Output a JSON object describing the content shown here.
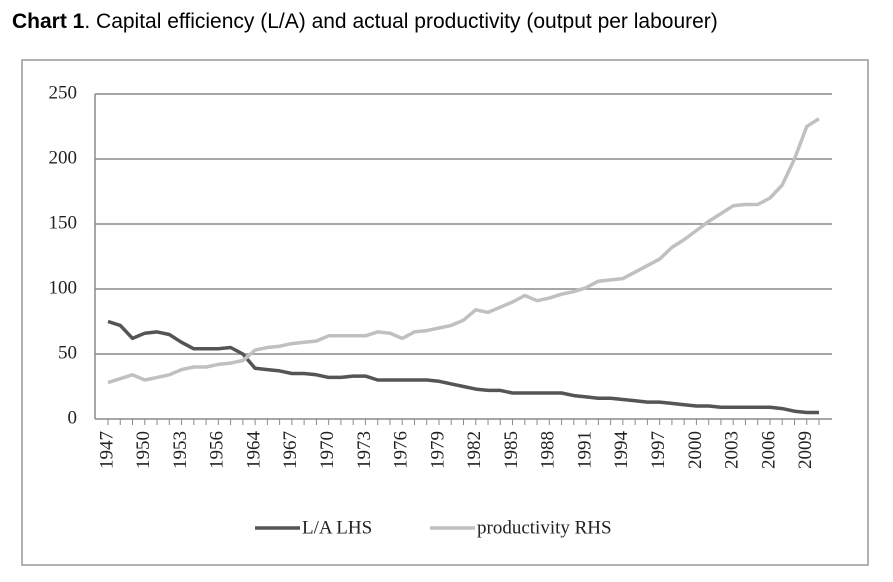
{
  "chart_data": {
    "type": "line",
    "title_label": "Chart 1",
    "title": ". Capital efficiency (L/A) and actual productivity (output per labourer)",
    "categories": [
      "1947",
      null,
      null,
      "1950",
      null,
      null,
      "1953",
      null,
      null,
      "1956",
      null,
      null,
      "1964",
      null,
      null,
      "1967",
      null,
      null,
      "1970",
      null,
      null,
      "1973",
      null,
      null,
      "1976",
      null,
      null,
      "1979",
      null,
      null,
      "1982",
      null,
      null,
      "1985",
      null,
      null,
      "1988",
      null,
      null,
      "1991",
      null,
      null,
      "1994",
      null,
      null,
      "1997",
      null,
      null,
      "2000",
      null,
      null,
      "2003",
      null,
      null,
      "2006",
      null,
      null,
      "2009",
      null
    ],
    "series": [
      {
        "name": "L/A LHS",
        "color": "#555555",
        "values": [
          75,
          72,
          62,
          66,
          67,
          65,
          59,
          54,
          54,
          54,
          55,
          50,
          39,
          38,
          37,
          35,
          35,
          34,
          32,
          32,
          33,
          33,
          30,
          30,
          30,
          30,
          30,
          29,
          27,
          25,
          23,
          22,
          22,
          20,
          20,
          20,
          20,
          20,
          18,
          17,
          16,
          16,
          15,
          14,
          13,
          13,
          12,
          11,
          10,
          10,
          9,
          9,
          9,
          9,
          9,
          8,
          6,
          5,
          5
        ]
      },
      {
        "name": "productivity RHS",
        "color": "#c0c0c0",
        "values": [
          28,
          31,
          34,
          30,
          32,
          34,
          38,
          40,
          40,
          42,
          43,
          45,
          53,
          55,
          56,
          58,
          59,
          60,
          64,
          64,
          64,
          64,
          67,
          66,
          62,
          67,
          68,
          70,
          72,
          76,
          84,
          82,
          86,
          90,
          95,
          91,
          93,
          96,
          98,
          101,
          106,
          107,
          108,
          113,
          118,
          123,
          132,
          138,
          145,
          152,
          158,
          164,
          165,
          165,
          170,
          180,
          200,
          225,
          231
        ]
      }
    ],
    "ylim": [
      0,
      250
    ],
    "yticks": [
      0,
      50,
      100,
      150,
      200,
      250
    ],
    "grid": true
  }
}
